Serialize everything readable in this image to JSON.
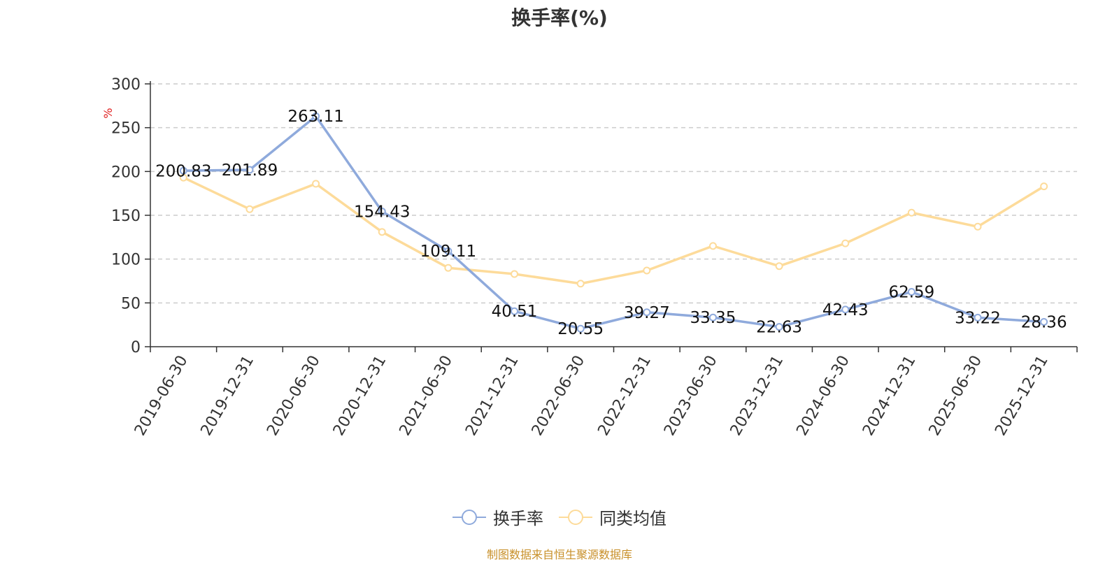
{
  "title": "换手率(%)",
  "source_note": "制图数据来自恒生聚源数据库",
  "chart_data": {
    "type": "line",
    "title": "换手率(%)",
    "ylabel": "%",
    "ylim": [
      0,
      300
    ],
    "yticks": [
      0,
      50,
      100,
      150,
      200,
      250,
      300
    ],
    "grid": true,
    "legend_position": "bottom-center",
    "categories": [
      "2019-06-30",
      "2019-12-31",
      "2020-06-30",
      "2020-12-31",
      "2021-06-30",
      "2021-12-31",
      "2022-06-30",
      "2022-12-31",
      "2023-06-30",
      "2023-12-31",
      "2024-06-30",
      "2024-12-31",
      "2025-06-30",
      "2025-12-31"
    ],
    "series": [
      {
        "name": "换手率",
        "color": "#8faadc",
        "show_labels": true,
        "values": [
          200.83,
          201.89,
          263.11,
          154.43,
          109.11,
          40.51,
          20.55,
          39.27,
          33.35,
          22.63,
          42.43,
          62.59,
          33.22,
          28.36
        ]
      },
      {
        "name": "同类均值",
        "color": "#fddb9a",
        "show_labels": false,
        "values": [
          193,
          157,
          186,
          131,
          90,
          83,
          72,
          87,
          115,
          92,
          118,
          153,
          137,
          183
        ]
      }
    ]
  }
}
